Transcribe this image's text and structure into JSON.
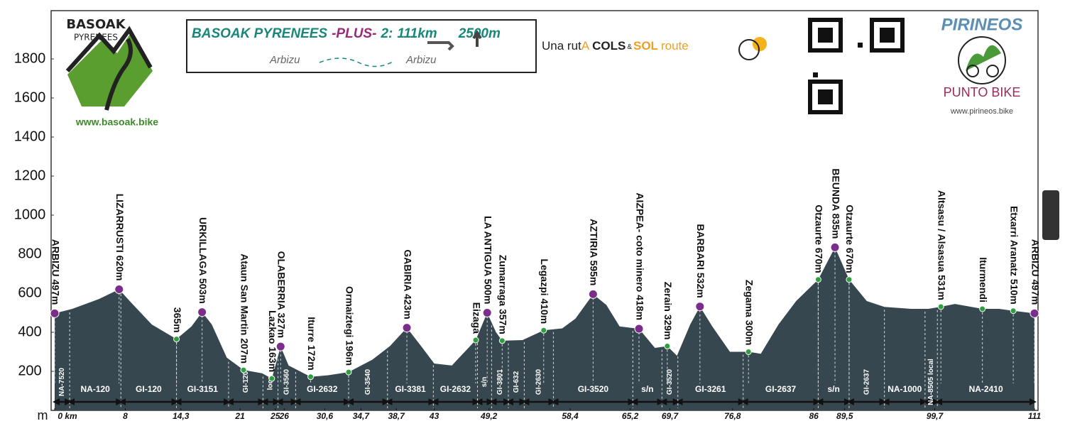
{
  "header": {
    "logo_left": "BASOAK",
    "logo_left_sub": "PYRENEES",
    "website_left": "www.basoak.bike",
    "title": {
      "name": "BASOAK PYRENEES",
      "edition": "-PLUS-",
      "number": "2:",
      "distance": "111km",
      "climb": "2500m"
    },
    "start": "Arbizu",
    "finish": "Arbizu",
    "tagline": {
      "a": "Una rut",
      "b": "A",
      "c": "COLS",
      "d": "&",
      "e": "SOL",
      "f": "route"
    },
    "logo_right": "PIRINEOS",
    "logo_right_sub": "PUNTO BIKE",
    "website_right": "www.pirineos.bike"
  },
  "chart_data": {
    "type": "area",
    "color": "#37474f",
    "ylabel": "m",
    "xlim": [
      0,
      111
    ],
    "ylim": [
      0,
      2000
    ],
    "yticks": [
      200,
      400,
      600,
      800,
      1000,
      1200,
      1400,
      1600,
      1800
    ],
    "xticks": [
      {
        "value": 0,
        "label": "0 km"
      },
      8,
      {
        "value": 14.3,
        "label": "14,3"
      },
      21,
      25,
      26,
      {
        "value": 30.6,
        "label": "30,6"
      },
      {
        "value": 34.7,
        "label": "34,7"
      },
      {
        "value": 38.7,
        "label": "38,7"
      },
      43,
      {
        "value": 49.2,
        "label": "49,2"
      },
      {
        "value": 58.4,
        "label": "58,4"
      },
      {
        "value": 65.2,
        "label": "65,2"
      },
      {
        "value": 69.7,
        "label": "69,7"
      },
      {
        "value": 76.8,
        "label": "76,8"
      },
      86,
      {
        "value": 89.5,
        "label": "89,5"
      },
      {
        "value": 99.7,
        "label": "99,7"
      },
      111
    ],
    "x": [
      0,
      2,
      5,
      7.3,
      8.5,
      11,
      13.8,
      15.5,
      16.7,
      17.8,
      19.5,
      21.4,
      23.5,
      24.6,
      25.6,
      26.5,
      29,
      31,
      33.3,
      36,
      38,
      39.9,
      41.5,
      43,
      45,
      47.7,
      49,
      50,
      50.7,
      53,
      55.4,
      57.5,
      59,
      61,
      62.5,
      64,
      66.2,
      68,
      69.4,
      70.5,
      72,
      73.1,
      74.5,
      76.5,
      78.6,
      80,
      82,
      84,
      86.5,
      88.4,
      90,
      92,
      94,
      97,
      99,
      100.4,
      102,
      105.1,
      107,
      108.6,
      111
    ],
    "values": [
      497,
      520,
      570,
      620,
      560,
      440,
      365,
      430,
      503,
      440,
      270,
      207,
      190,
      163,
      327,
      230,
      172,
      180,
      196,
      260,
      330,
      423,
      330,
      240,
      230,
      360,
      500,
      400,
      357,
      360,
      410,
      420,
      470,
      595,
      540,
      430,
      418,
      320,
      329,
      280,
      440,
      532,
      430,
      300,
      300,
      290,
      440,
      560,
      670,
      835,
      670,
      560,
      530,
      520,
      520,
      531,
      545,
      520,
      520,
      510,
      497
    ],
    "marker_colors": {
      "summit": "#7b2d8b",
      "town": "#2e9e3e"
    },
    "waypoints": [
      {
        "label": "ARBIZU 497m",
        "km": 0,
        "elevation": 497,
        "kind": "summit"
      },
      {
        "label": "LIZARRUSTI 620m",
        "km": 7.3,
        "elevation": 620,
        "kind": "summit"
      },
      {
        "label": "365m",
        "km": 13.8,
        "elevation": 365,
        "kind": "town"
      },
      {
        "label": "URKILLAGA 503m",
        "km": 16.7,
        "elevation": 503,
        "kind": "summit"
      },
      {
        "label": "Ataun San Martin 207m",
        "km": 21.4,
        "elevation": 207,
        "kind": "town"
      },
      {
        "label": "Lazkao 163m",
        "km": 24.6,
        "elevation": 163,
        "kind": "town"
      },
      {
        "label": "OLABERRIA 327m",
        "km": 25.6,
        "elevation": 327,
        "kind": "summit"
      },
      {
        "label": "Iturre 172m",
        "km": 29,
        "elevation": 172,
        "kind": "town"
      },
      {
        "label": "Ormaiztegi 196m",
        "km": 33.3,
        "elevation": 196,
        "kind": "town"
      },
      {
        "label": "GABIRIA 423m",
        "km": 39.9,
        "elevation": 423,
        "kind": "summit"
      },
      {
        "label": "Eizaga",
        "km": 47.7,
        "elevation": 360,
        "kind": "town"
      },
      {
        "label": "LA ANTIGUA 500m",
        "km": 49,
        "elevation": 500,
        "kind": "summit"
      },
      {
        "label": "Zumarraga 357m",
        "km": 50.7,
        "elevation": 357,
        "kind": "town"
      },
      {
        "label": "Legazpi 410m",
        "km": 55.4,
        "elevation": 410,
        "kind": "town"
      },
      {
        "label": "AZTIRIA 595m",
        "km": 61,
        "elevation": 595,
        "kind": "summit"
      },
      {
        "label": "AIZPEA- coto minero 418m",
        "km": 66.2,
        "elevation": 418,
        "kind": "summit"
      },
      {
        "label": "Zerain 329m",
        "km": 69.4,
        "elevation": 329,
        "kind": "town"
      },
      {
        "label": "BARBARI 532m",
        "km": 73.1,
        "elevation": 532,
        "kind": "summit"
      },
      {
        "label": "Zegama 300m",
        "km": 78.6,
        "elevation": 300,
        "kind": "town"
      },
      {
        "label": "Otzaurte 670m",
        "km": 86.5,
        "elevation": 670,
        "kind": "town"
      },
      {
        "label": "BEUNDA 835m",
        "km": 88.4,
        "elevation": 835,
        "kind": "summit"
      },
      {
        "label": "Otzaurte 670m",
        "km": 90,
        "elevation": 670,
        "kind": "town"
      },
      {
        "label": "Altsasu / Alsasua 531m",
        "km": 100.4,
        "elevation": 531,
        "kind": "town"
      },
      {
        "label": "Iturmendi",
        "km": 105.1,
        "elevation": 520,
        "kind": "town"
      },
      {
        "label": "Etxarri Aranatz 510m",
        "km": 108.6,
        "elevation": 510,
        "kind": "town"
      },
      {
        "label": "ARBIZU 497m",
        "km": 111,
        "elevation": 497,
        "kind": "summit"
      }
    ],
    "roads": [
      {
        "name": "NA-7520",
        "from": 0,
        "to": 1.7
      },
      {
        "name": "NA-120",
        "from": 1.7,
        "to": 7.5
      },
      {
        "name": "GI-120",
        "from": 7.5,
        "to": 13.8
      },
      {
        "name": "GI-3151",
        "from": 13.8,
        "to": 19.7
      },
      {
        "name": "GI-120",
        "from": 19.7,
        "to": 23.6
      },
      {
        "name": "local",
        "from": 23.6,
        "to": 25.3
      },
      {
        "name": "GI-3560",
        "from": 25.3,
        "to": 27.3
      },
      {
        "name": "GI-2632",
        "from": 27.3,
        "to": 33.3
      },
      {
        "name": "GI-3540",
        "from": 33.3,
        "to": 37.7
      },
      {
        "name": "GI-3381",
        "from": 37.7,
        "to": 42.9
      },
      {
        "name": "GI-2632",
        "from": 42.9,
        "to": 47.9
      },
      {
        "name": "s/n",
        "from": 47.9,
        "to": 49.5
      },
      {
        "name": "GI-3801",
        "from": 49.5,
        "to": 51.4
      },
      {
        "name": "GI-632",
        "from": 51.4,
        "to": 53.2
      },
      {
        "name": "GI-2630",
        "from": 53.2,
        "to": 56.5
      },
      {
        "name": "GI-3520",
        "from": 56.5,
        "to": 65.5
      },
      {
        "name": "s/n",
        "from": 65.5,
        "to": 68.8
      },
      {
        "name": "GI-3520",
        "from": 68.8,
        "to": 70.6
      },
      {
        "name": "GI-3261",
        "from": 70.6,
        "to": 78
      },
      {
        "name": "GI-2637",
        "from": 78,
        "to": 86.5
      },
      {
        "name": "s/n",
        "from": 86.5,
        "to": 90
      },
      {
        "name": "GI-2637",
        "from": 90,
        "to": 94
      },
      {
        "name": "NA-1000",
        "from": 94,
        "to": 98.6
      },
      {
        "name": "NA-8505 local",
        "from": 98.6,
        "to": 100
      },
      {
        "name": "NA-2410",
        "from": 100,
        "to": 111
      }
    ]
  }
}
